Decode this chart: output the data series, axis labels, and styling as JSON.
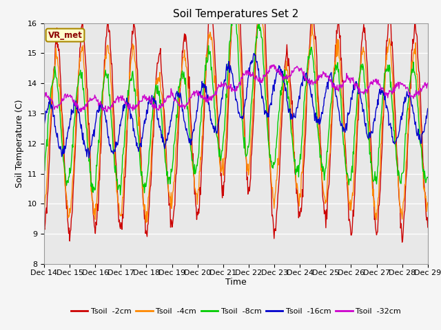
{
  "title": "Soil Temperatures Set 2",
  "xlabel": "Time",
  "ylabel": "Soil Temperature (C)",
  "ylim": [
    8.0,
    16.0
  ],
  "yticks": [
    8.0,
    9.0,
    10.0,
    11.0,
    12.0,
    13.0,
    14.0,
    15.0,
    16.0
  ],
  "x_labels": [
    "Dec 14",
    "Dec 15",
    "Dec 16",
    "Dec 17",
    "Dec 18",
    "Dec 19",
    "Dec 20",
    "Dec 21",
    "Dec 22",
    "Dec 23",
    "Dec 24",
    "Dec 25",
    "Dec 26",
    "Dec 27",
    "Dec 28",
    "Dec 29"
  ],
  "site_label": "VR_met",
  "colors": {
    "tsoil_2cm": "#cc0000",
    "tsoil_4cm": "#ff8800",
    "tsoil_8cm": "#00cc00",
    "tsoil_16cm": "#0000cc",
    "tsoil_32cm": "#cc00cc"
  },
  "legend_labels": [
    "Tsoil  -2cm",
    "Tsoil  -4cm",
    "Tsoil  -8cm",
    "Tsoil  -16cm",
    "Tsoil  -32cm"
  ],
  "background_color": "#e8e8e8",
  "title_fontsize": 11,
  "axis_fontsize": 9,
  "tick_fontsize": 8
}
